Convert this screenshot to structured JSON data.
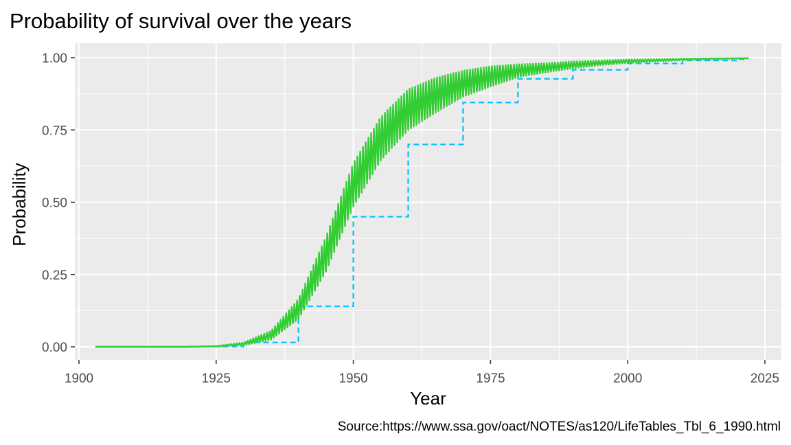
{
  "chart_data": {
    "type": "line",
    "title": "Probability of survival over the years",
    "xlabel": "Year",
    "ylabel": "Probability",
    "caption": "Source:https://www.ssa.gov/oact/NOTES/as120/LifeTables_Tbl_6_1990.html",
    "xlim": [
      1900,
      2025
    ],
    "ylim": [
      0,
      1
    ],
    "x_ticks": [
      1900,
      1925,
      1950,
      1975,
      2000,
      2025
    ],
    "x_tick_labels": [
      "1900",
      "1925",
      "1950",
      "1975",
      "2000",
      "2025"
    ],
    "y_ticks": [
      0,
      0.25,
      0.5,
      0.75,
      1
    ],
    "y_tick_labels": [
      "0.00",
      "0.25",
      "0.50",
      "0.75",
      "1.00"
    ],
    "grid": true,
    "background": "#ebebeb",
    "series": [
      {
        "style": "dashed step",
        "color": "#00bfff",
        "x": [
          1910,
          1920,
          1930,
          1940,
          1950,
          1960,
          1970,
          1980,
          1990,
          2000,
          2010,
          2020
        ],
        "values": [
          0.0,
          0.001,
          0.015,
          0.14,
          0.45,
          0.7,
          0.845,
          0.927,
          0.958,
          0.98,
          0.99,
          0.995
        ]
      },
      {
        "style": "solid",
        "color": "#32cd32",
        "x": [
          1903,
          1910,
          1920,
          1925,
          1930,
          1935,
          1940,
          1945,
          1950,
          1955,
          1960,
          1965,
          1970,
          1975,
          1980,
          1985,
          1990,
          1995,
          2000,
          2005,
          2010,
          2015,
          2022
        ],
        "values": [
          0.0,
          0.0,
          0.0,
          0.002,
          0.01,
          0.04,
          0.13,
          0.32,
          0.56,
          0.72,
          0.82,
          0.87,
          0.91,
          0.935,
          0.955,
          0.965,
          0.975,
          0.982,
          0.988,
          0.991,
          0.994,
          0.996,
          0.998
        ],
        "oscillation_amplitude": [
          0.0,
          0.0,
          0.0,
          0.001,
          0.005,
          0.015,
          0.035,
          0.06,
          0.075,
          0.075,
          0.07,
          0.06,
          0.045,
          0.035,
          0.022,
          0.016,
          0.012,
          0.008,
          0.006,
          0.004,
          0.003,
          0.002,
          0.001
        ]
      }
    ]
  }
}
